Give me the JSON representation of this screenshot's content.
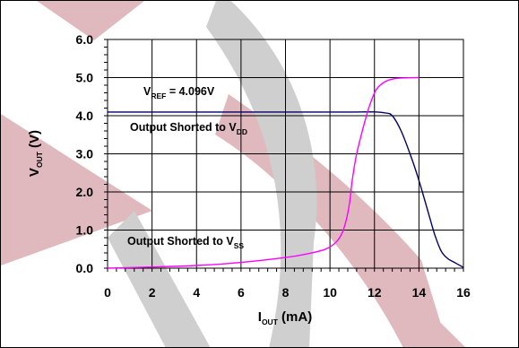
{
  "colors": {
    "background": "#ffffff",
    "watermark_pink": "#d8b3b8",
    "watermark_gray": "#cfcfcf",
    "grid": "#000000",
    "series_vdd": "#000066",
    "series_vss": "#ff00ff"
  },
  "chart_data": {
    "type": "line",
    "title": "",
    "xlabel": {
      "main": "I",
      "sub": "OUT",
      "rest": " (mA)"
    },
    "ylabel": {
      "main": "V",
      "sub": "OUT",
      "rest": " (V)"
    },
    "xlim": [
      0,
      16
    ],
    "ylim": [
      0,
      6
    ],
    "x_ticks": [
      "0",
      "2",
      "4",
      "6",
      "8",
      "10",
      "12",
      "14",
      "16"
    ],
    "y_ticks": [
      "0.0",
      "1.0",
      "2.0",
      "3.0",
      "4.0",
      "5.0",
      "6.0"
    ],
    "grid": true,
    "legend": "none",
    "annotations": {
      "vref": {
        "main": "V",
        "sub": "REF",
        "rest": " = 4.096V"
      },
      "vdd": {
        "main": "Output Shorted to V",
        "sub": "DD"
      },
      "vss": {
        "main": "Output Shorted to V",
        "sub": "SS"
      }
    },
    "series": [
      {
        "color": "#000066",
        "points": [
          [
            0,
            4.096
          ],
          [
            2,
            4.096
          ],
          [
            4,
            4.096
          ],
          [
            6,
            4.096
          ],
          [
            8,
            4.096
          ],
          [
            10,
            4.096
          ],
          [
            11,
            4.096
          ],
          [
            12,
            4.1
          ],
          [
            12.5,
            4.07
          ],
          [
            12.8,
            4.0
          ],
          [
            13.2,
            3.6
          ],
          [
            13.6,
            3.0
          ],
          [
            14.0,
            2.3
          ],
          [
            14.4,
            1.5
          ],
          [
            14.7,
            0.9
          ],
          [
            15.0,
            0.45
          ],
          [
            15.3,
            0.25
          ],
          [
            15.6,
            0.15
          ],
          [
            16.0,
            0.02
          ]
        ]
      },
      {
        "color": "#ff00ff",
        "points": [
          [
            0,
            0.0
          ],
          [
            2,
            0.03
          ],
          [
            4,
            0.07
          ],
          [
            6,
            0.15
          ],
          [
            8,
            0.28
          ],
          [
            9,
            0.38
          ],
          [
            9.8,
            0.5
          ],
          [
            10.3,
            0.7
          ],
          [
            10.6,
            1.0
          ],
          [
            10.85,
            1.6
          ],
          [
            11.0,
            2.3
          ],
          [
            11.2,
            3.0
          ],
          [
            11.5,
            3.7
          ],
          [
            11.8,
            4.3
          ],
          [
            12.1,
            4.7
          ],
          [
            12.5,
            4.9
          ],
          [
            13.0,
            4.98
          ],
          [
            14.0,
            5.0
          ]
        ]
      }
    ]
  }
}
